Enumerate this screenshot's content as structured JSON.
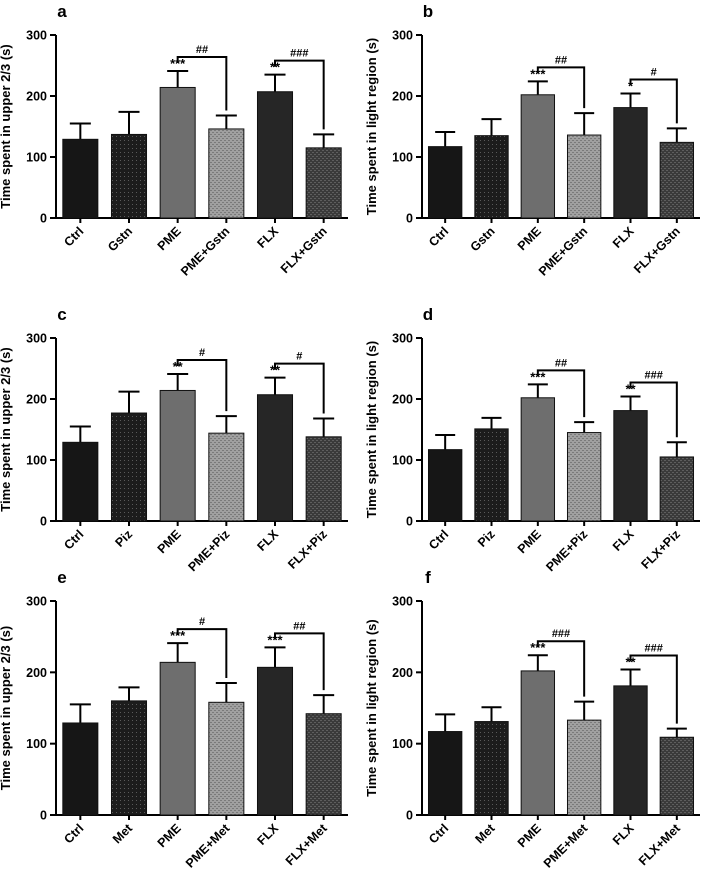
{
  "figure": {
    "background": "#ffffff",
    "fills": {
      "Ctrl": "#161616",
      "Gstn": "#1c1c1c",
      "Piz": "#1c1c1c",
      "Met": "#1c1c1c",
      "PME": "#6e6e6e",
      "PME+": "#9a9a9a",
      "FLX": "#262626",
      "FLX+": "#3a3a3a"
    }
  },
  "chart_data": [
    {
      "panel": "a",
      "type": "bar",
      "ylabel": "Time spent in upper 2/3 (s)",
      "ylim": [
        0,
        300
      ],
      "yticks": [
        0,
        100,
        200,
        300
      ],
      "categories": [
        "Ctrl",
        "Gstn",
        "PME",
        "PME+Gstn",
        "FLX",
        "FLX+Gstn"
      ],
      "values": [
        129,
        137,
        214,
        146,
        207,
        115
      ],
      "errors": [
        26,
        37,
        27,
        22,
        28,
        22
      ],
      "stars": [
        "",
        "",
        "***",
        "",
        "**",
        ""
      ],
      "brackets": [
        {
          "from": 2,
          "to": 3,
          "label": "##"
        },
        {
          "from": 4,
          "to": 5,
          "label": "###"
        }
      ]
    },
    {
      "panel": "b",
      "type": "bar",
      "ylabel": "Time spent in light region (s)",
      "ylim": [
        0,
        300
      ],
      "yticks": [
        0,
        100,
        200,
        300
      ],
      "categories": [
        "Ctrl",
        "Gstn",
        "PME",
        "PME+Gstn",
        "FLX",
        "FLX+Gstn"
      ],
      "values": [
        117,
        135,
        202,
        136,
        181,
        124
      ],
      "errors": [
        24,
        27,
        22,
        36,
        23,
        23
      ],
      "stars": [
        "",
        "",
        "***",
        "",
        "*",
        ""
      ],
      "brackets": [
        {
          "from": 2,
          "to": 3,
          "label": "##"
        },
        {
          "from": 4,
          "to": 5,
          "label": "#"
        }
      ]
    },
    {
      "panel": "c",
      "type": "bar",
      "ylabel": "Time spent in upper 2/3 (s)",
      "ylim": [
        0,
        300
      ],
      "yticks": [
        0,
        100,
        200,
        300
      ],
      "categories": [
        "Ctrl",
        "Piz",
        "PME",
        "PME+Piz",
        "FLX",
        "FLX+Piz"
      ],
      "values": [
        129,
        177,
        214,
        144,
        207,
        138
      ],
      "errors": [
        26,
        35,
        27,
        28,
        28,
        30
      ],
      "stars": [
        "",
        "",
        "**",
        "",
        "**",
        ""
      ],
      "brackets": [
        {
          "from": 2,
          "to": 3,
          "label": "#"
        },
        {
          "from": 4,
          "to": 5,
          "label": "#"
        }
      ]
    },
    {
      "panel": "d",
      "type": "bar",
      "ylabel": "Time spent in light region (s)",
      "ylim": [
        0,
        300
      ],
      "yticks": [
        0,
        100,
        200,
        300
      ],
      "categories": [
        "Ctrl",
        "Piz",
        "PME",
        "PME+Piz",
        "FLX",
        "FLX+Piz"
      ],
      "values": [
        117,
        151,
        202,
        145,
        181,
        105
      ],
      "errors": [
        24,
        18,
        22,
        17,
        23,
        24
      ],
      "stars": [
        "",
        "",
        "***",
        "",
        "**",
        ""
      ],
      "brackets": [
        {
          "from": 2,
          "to": 3,
          "label": "##"
        },
        {
          "from": 4,
          "to": 5,
          "label": "###"
        }
      ]
    },
    {
      "panel": "e",
      "type": "bar",
      "ylabel": "Time spent in upper 2/3 (s)",
      "ylim": [
        0,
        300
      ],
      "yticks": [
        0,
        100,
        200,
        300
      ],
      "categories": [
        "Ctrl",
        "Met",
        "PME",
        "PME+Met",
        "FLX",
        "FLX+Met"
      ],
      "values": [
        129,
        160,
        214,
        158,
        207,
        142
      ],
      "errors": [
        26,
        19,
        27,
        27,
        28,
        26
      ],
      "stars": [
        "",
        "",
        "***",
        "",
        "***",
        ""
      ],
      "brackets": [
        {
          "from": 2,
          "to": 3,
          "label": "#"
        },
        {
          "from": 4,
          "to": 5,
          "label": "##"
        }
      ]
    },
    {
      "panel": "f",
      "type": "bar",
      "ylabel": "Time spent in light region (s)",
      "ylim": [
        0,
        300
      ],
      "yticks": [
        0,
        100,
        200,
        300
      ],
      "categories": [
        "Ctrl",
        "Met",
        "PME",
        "PME+Met",
        "FLX",
        "FLX+Met"
      ],
      "values": [
        117,
        131,
        202,
        133,
        181,
        109
      ],
      "errors": [
        24,
        20,
        22,
        26,
        23,
        12
      ],
      "stars": [
        "",
        "",
        "***",
        "",
        "**",
        ""
      ],
      "brackets": [
        {
          "from": 2,
          "to": 3,
          "label": "###"
        },
        {
          "from": 4,
          "to": 5,
          "label": "###"
        }
      ]
    }
  ]
}
